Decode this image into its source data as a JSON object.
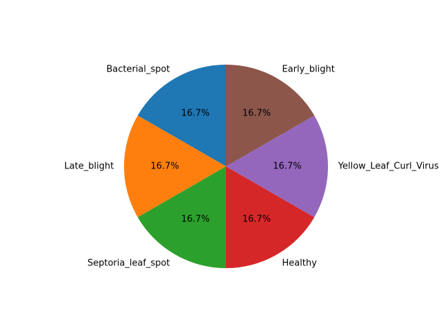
{
  "chart_data": {
    "type": "pie",
    "title": "",
    "start_angle_deg": 90,
    "direction": "counterclockwise",
    "autopct_format": "%.1f%%",
    "slices": [
      {
        "label": "Bacterial_spot",
        "value": 1,
        "percent": "16.7%",
        "color": "#1f77b4"
      },
      {
        "label": "Late_blight",
        "value": 1,
        "percent": "16.7%",
        "color": "#ff7f0e"
      },
      {
        "label": "Septoria_leaf_spot",
        "value": 1,
        "percent": "16.7%",
        "color": "#2ca02c"
      },
      {
        "label": "Healthy",
        "value": 1,
        "percent": "16.7%",
        "color": "#d62728"
      },
      {
        "label": "Yellow_Leaf_Curl_Virus",
        "value": 1,
        "percent": "16.7%",
        "color": "#9467bd"
      },
      {
        "label": "Early_blight",
        "value": 1,
        "percent": "16.7%",
        "color": "#8c564b"
      }
    ],
    "legend": "none",
    "grid": false
  }
}
